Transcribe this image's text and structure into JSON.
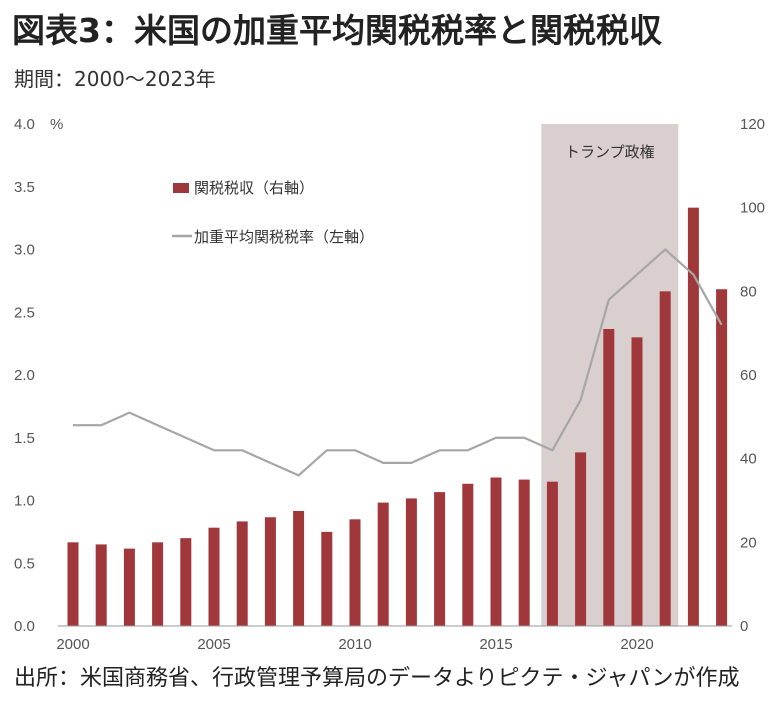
{
  "title": "図表3：米国の加重平均関税税率と関税税収",
  "subtitle": "期間：2000〜2023年",
  "source": "出所：米国商務省、行政管理予算局のデータよりピクテ・ジャパンが作成",
  "chart_data": {
    "type": "bar+line",
    "left_axis": {
      "unit": "%",
      "range": [
        0,
        4.0
      ],
      "ticks": [
        "4.0",
        "3.5",
        "3.0",
        "2.5",
        "2.0",
        "1.5",
        "1.0",
        "0.5",
        "0.0"
      ]
    },
    "right_axis": {
      "range": [
        0,
        120
      ],
      "ticks": [
        "120",
        "100",
        "80",
        "60",
        "40",
        "20",
        "0"
      ]
    },
    "x_ticks": [
      "2000",
      "2005",
      "2010",
      "2015",
      "2020"
    ],
    "years": [
      2000,
      2001,
      2002,
      2003,
      2004,
      2005,
      2006,
      2007,
      2008,
      2009,
      2010,
      2011,
      2012,
      2013,
      2014,
      2015,
      2016,
      2017,
      2018,
      2019,
      2020,
      2021,
      2022,
      2023
    ],
    "series": [
      {
        "name": "関税税収（右軸）",
        "type": "bar",
        "axis": "right",
        "color": "#a0373b",
        "values": [
          20,
          19.5,
          18.5,
          20,
          21,
          23.5,
          25,
          26,
          27.5,
          22.5,
          25.5,
          29.5,
          30.5,
          32,
          34,
          35.5,
          35,
          34.5,
          41.5,
          71,
          69,
          80,
          100,
          80.5
        ]
      },
      {
        "name": "加重平均関税税率（左軸）",
        "type": "line",
        "axis": "left",
        "color": "#a6a6a6",
        "values": [
          1.6,
          1.6,
          1.7,
          1.6,
          1.5,
          1.4,
          1.4,
          1.3,
          1.2,
          1.4,
          1.4,
          1.3,
          1.3,
          1.4,
          1.4,
          1.5,
          1.5,
          1.4,
          1.8,
          2.6,
          2.8,
          3.0,
          2.8,
          2.4
        ]
      }
    ],
    "shaded_region": {
      "label": "トランプ政権",
      "from": 2017,
      "to": 2021,
      "color": "#d9cfcf"
    },
    "grid": false,
    "legend": "top-left"
  }
}
